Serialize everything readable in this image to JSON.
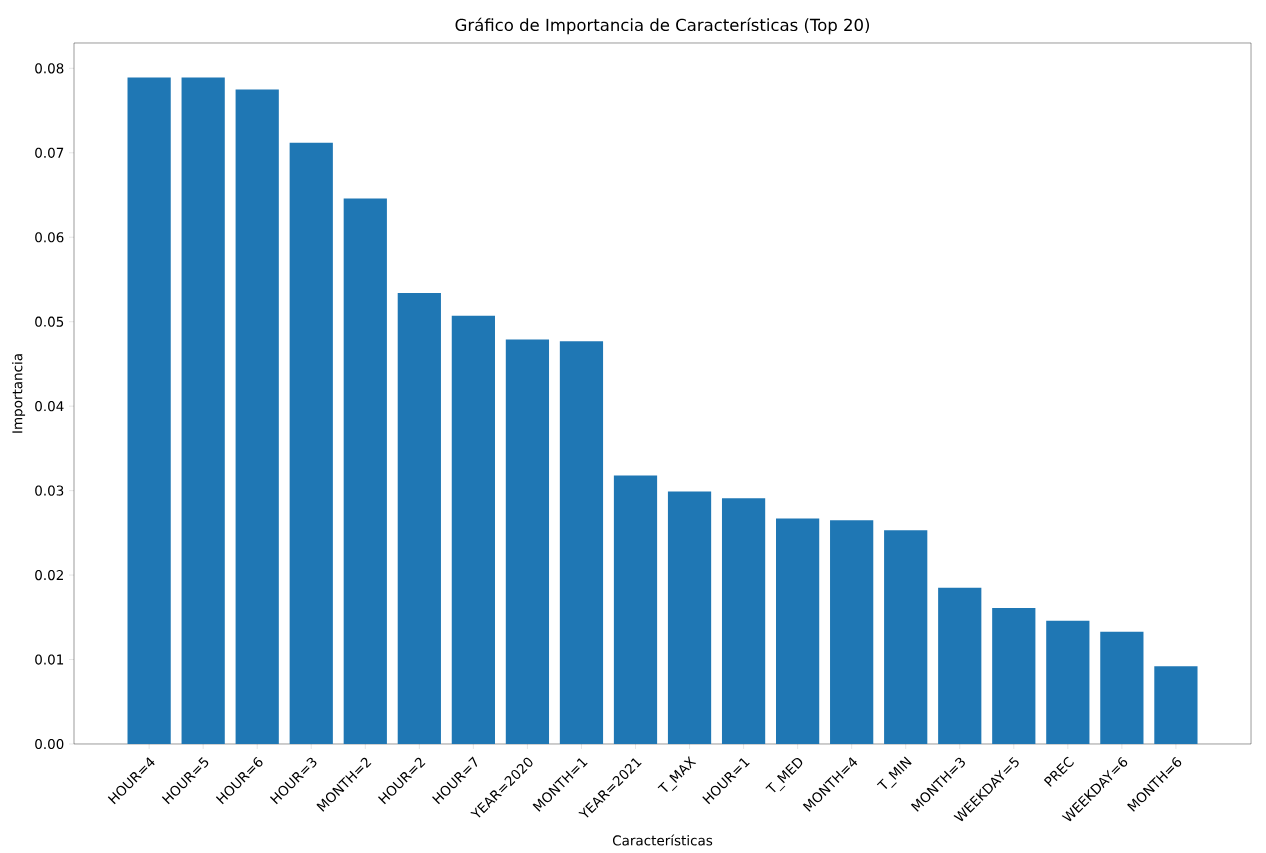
{
  "chart_data": {
    "type": "bar",
    "title": "Gráfico de Importancia de Características (Top 20)",
    "xlabel": "Características",
    "ylabel": "Importancia",
    "categories": [
      "HOUR=4",
      "HOUR=5",
      "HOUR=6",
      "HOUR=3",
      "MONTH=2",
      "HOUR=2",
      "HOUR=7",
      "YEAR=2020",
      "MONTH=1",
      "YEAR=2021",
      "T_MAX",
      "HOUR=1",
      "T_MED",
      "MONTH=4",
      "T_MIN",
      "MONTH=3",
      "WEEKDAY=5",
      "PREC",
      "WEEKDAY=6",
      "MONTH=6"
    ],
    "values": [
      0.0789,
      0.0789,
      0.0775,
      0.0712,
      0.0646,
      0.0534,
      0.0507,
      0.0479,
      0.0477,
      0.0318,
      0.0299,
      0.0291,
      0.0267,
      0.0265,
      0.0253,
      0.0185,
      0.0161,
      0.0146,
      0.0133,
      0.0092
    ],
    "color": "#1f77b4",
    "ylim": [
      0,
      0.083
    ],
    "yticks": [
      {
        "value": 0,
        "label": "0.00"
      },
      0.01,
      0.02,
      0.03,
      0.04,
      0.05,
      0.06,
      0.07,
      0.08
    ],
    "grid": false
  }
}
